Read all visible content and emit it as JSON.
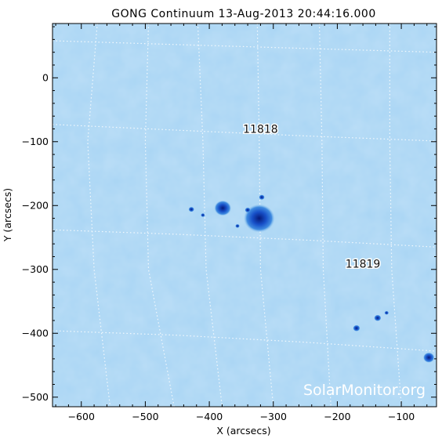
{
  "title": "GONG Continuum 13-Aug-2013 20:44:16.000",
  "watermark": "SolarMonitor.org",
  "map_data": {
    "type": "heatmap",
    "xlabel": "X (arcsecs)",
    "ylabel": "Y (arcsecs)",
    "xlim": [
      -645,
      -45
    ],
    "ylim": [
      -515,
      85
    ],
    "x_ticks": [
      -600,
      -500,
      -400,
      -300,
      -200,
      -100
    ],
    "y_ticks": [
      0,
      -100,
      -200,
      -300,
      -400,
      -500
    ],
    "background_color": "#a9d5f4",
    "spot_color": "#1a5fd0",
    "umbra_color": "#0a1f8c",
    "grid": "dotted heliographic grid",
    "regions": [
      {
        "label": "11818",
        "x": -320,
        "y": -86
      },
      {
        "label": "11819",
        "x": -160,
        "y": -297
      }
    ],
    "spots": [
      {
        "x": -322,
        "y": -220,
        "size": 22
      },
      {
        "x": -379,
        "y": -204,
        "size": 12
      },
      {
        "x": -318,
        "y": -187,
        "size": 4
      },
      {
        "x": -340,
        "y": -207,
        "size": 4
      },
      {
        "x": -428,
        "y": -206,
        "size": 4
      },
      {
        "x": -410,
        "y": -215,
        "size": 3
      },
      {
        "x": -356,
        "y": -232,
        "size": 3
      },
      {
        "x": -170,
        "y": -392,
        "size": 5
      },
      {
        "x": -137,
        "y": -376,
        "size": 5
      },
      {
        "x": -123,
        "y": -368,
        "size": 3
      },
      {
        "x": -57,
        "y": -438,
        "size": 8
      }
    ]
  }
}
